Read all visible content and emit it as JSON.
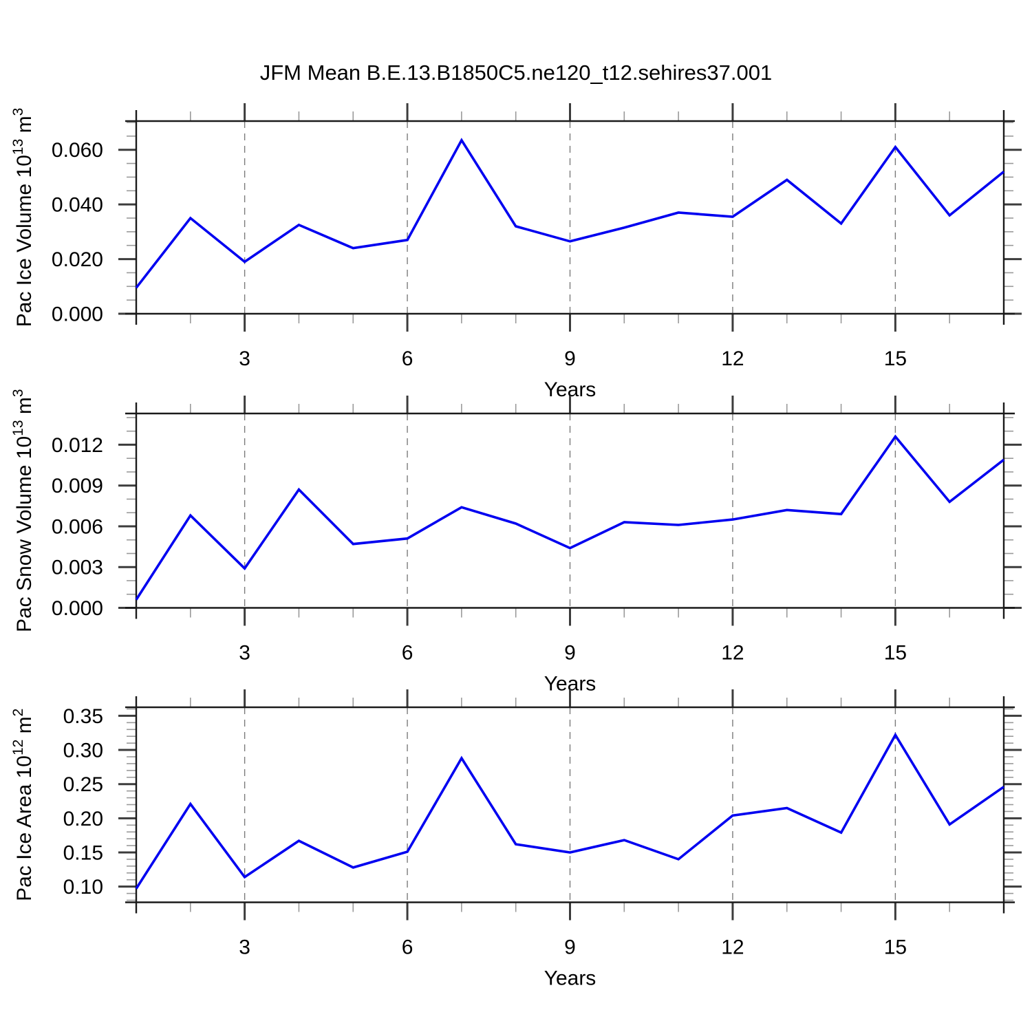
{
  "title": "JFM Mean B.E.13.B1850C5.ne120_t12.sehires37.001",
  "colors": {
    "series_line": "#0000f0",
    "frame": "#1a1a1a",
    "major_tick": "#3c3c3c",
    "minor_tick": "#9a9a9a",
    "gridline": "#7a7a7a",
    "text": "#000000",
    "background": "#ffffff"
  },
  "chart_data": {
    "type": "line",
    "title": "JFM Mean B.E.13.B1850C5.ne120_t12.sehires37.001",
    "x": [
      1,
      2,
      3,
      4,
      5,
      6,
      7,
      8,
      9,
      10,
      11,
      12,
      13,
      14,
      15,
      16,
      17
    ],
    "xlabel": "Years",
    "x_range": [
      1,
      17
    ],
    "x_major_ticks": [
      3,
      6,
      9,
      12,
      15
    ],
    "x_major_tick_labels": [
      "3",
      "6",
      "9",
      "12",
      "15"
    ],
    "x_minor_step": 1,
    "grid": "vertical dashed gridlines at x major ticks",
    "legend_position": "none",
    "subplots": [
      {
        "name": "pac-ice-volume",
        "ylabel": "Pac Ice Volume 10¹³ m³",
        "ylabel_parts": [
          {
            "text": "Pac Ice Volume 10",
            "sup": false
          },
          {
            "text": "13",
            "sup": true
          },
          {
            "text": " m",
            "sup": false
          },
          {
            "text": "3",
            "sup": true
          }
        ],
        "ylim": [
          0,
          0.0705
        ],
        "y_major_ticks": [
          0.0,
          0.02,
          0.04,
          0.06
        ],
        "y_tick_labels": [
          "0.000",
          "0.020",
          "0.040",
          "0.060"
        ],
        "y_minor_step": 0.005,
        "values": [
          0.0095,
          0.035,
          0.019,
          0.0325,
          0.024,
          0.027,
          0.0635,
          0.032,
          0.0265,
          0.0315,
          0.037,
          0.0355,
          0.049,
          0.033,
          0.061,
          0.036,
          0.052
        ]
      },
      {
        "name": "pac-snow-volume",
        "ylabel": "Pac Snow Volume 10¹³ m³",
        "ylabel_parts": [
          {
            "text": "Pac Snow Volume 10",
            "sup": false
          },
          {
            "text": "13",
            "sup": true
          },
          {
            "text": " m",
            "sup": false
          },
          {
            "text": "3",
            "sup": true
          }
        ],
        "ylim": [
          0,
          0.0143
        ],
        "y_major_ticks": [
          0.0,
          0.003,
          0.006,
          0.009,
          0.012
        ],
        "y_tick_labels": [
          "0.000",
          "0.003",
          "0.006",
          "0.009",
          "0.012"
        ],
        "y_minor_step": 0.001,
        "values": [
          0.0006,
          0.0068,
          0.0029,
          0.0087,
          0.0047,
          0.0051,
          0.0074,
          0.0062,
          0.0044,
          0.0063,
          0.0061,
          0.0065,
          0.0072,
          0.0069,
          0.0126,
          0.0078,
          0.0109
        ]
      },
      {
        "name": "pac-ice-area",
        "ylabel": "Pac Ice Area 10¹² m²",
        "ylabel_parts": [
          {
            "text": "Pac Ice Area 10",
            "sup": false
          },
          {
            "text": "12",
            "sup": true
          },
          {
            "text": " m",
            "sup": false
          },
          {
            "text": "2",
            "sup": true
          }
        ],
        "ylim": [
          0.077,
          0.3625
        ],
        "y_major_ticks": [
          0.1,
          0.15,
          0.2,
          0.25,
          0.3,
          0.35
        ],
        "y_tick_labels": [
          "0.10",
          "0.15",
          "0.20",
          "0.25",
          "0.30",
          "0.35"
        ],
        "y_minor_step": 0.01,
        "values": [
          0.097,
          0.221,
          0.114,
          0.167,
          0.128,
          0.151,
          0.288,
          0.162,
          0.15,
          0.168,
          0.14,
          0.204,
          0.215,
          0.179,
          0.322,
          0.191,
          0.246
        ]
      }
    ]
  }
}
